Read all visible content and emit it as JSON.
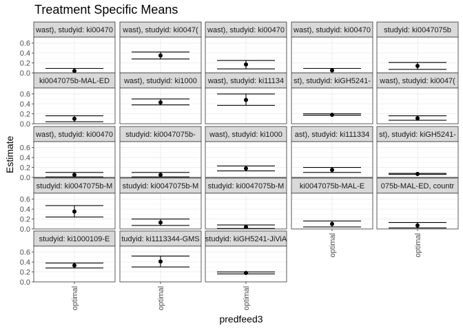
{
  "chart_data": {
    "type": "scatter",
    "title": "Treatment Specific Means",
    "xlabel": "predfeed3",
    "ylabel": "Estimate",
    "category": "optimal",
    "yticks": [
      "0.0",
      "0.2",
      "0.4",
      "0.6"
    ],
    "ylim": [
      0.0,
      0.72
    ],
    "grid": true,
    "panels": [
      {
        "strip": "wast), studyid: ki00470",
        "estimate": 0.04,
        "ci_low": 0.0,
        "ci_high": 0.09
      },
      {
        "strip": "wast), studyid: ki0047(",
        "estimate": 0.35,
        "ci_low": 0.28,
        "ci_high": 0.42
      },
      {
        "strip": "wast), studyid: ki00470",
        "estimate": 0.17,
        "ci_low": 0.08,
        "ci_high": 0.25
      },
      {
        "strip": "wast), studyid: ki00470",
        "estimate": 0.05,
        "ci_low": 0.0,
        "ci_high": 0.09
      },
      {
        "strip": "studyid: ki0047075b",
        "estimate": 0.14,
        "ci_low": 0.07,
        "ci_high": 0.21
      },
      {
        "strip": "ki0047075b-MAL-ED",
        "estimate": 0.1,
        "ci_low": 0.04,
        "ci_high": 0.16
      },
      {
        "strip": "wast), studyid: ki1000",
        "estimate": 0.43,
        "ci_low": 0.38,
        "ci_high": 0.5
      },
      {
        "strip": "wast), studyid: ki11134",
        "estimate": 0.48,
        "ci_low": 0.37,
        "ci_high": 0.6
      },
      {
        "strip": "st), studyid: kiGH5241-",
        "estimate": 0.18,
        "ci_low": 0.17,
        "ci_high": 0.2
      },
      {
        "strip": "wast), studyid: ki0047(",
        "estimate": 0.11,
        "ci_low": 0.07,
        "ci_high": 0.16
      },
      {
        "strip": "wast), studyid: ki00470",
        "estimate": 0.05,
        "ci_low": 0.01,
        "ci_high": 0.1
      },
      {
        "strip": "studyid: ki0047075b-",
        "estimate": 0.05,
        "ci_low": 0.01,
        "ci_high": 0.1
      },
      {
        "strip": "wast), studyid: ki1000",
        "estimate": 0.18,
        "ci_low": 0.13,
        "ci_high": 0.23
      },
      {
        "strip": "ast), studyid: ki111334",
        "estimate": 0.15,
        "ci_low": 0.1,
        "ci_high": 0.2
      },
      {
        "strip": "st), studyid: kiGH5241-",
        "estimate": 0.07,
        "ci_low": 0.06,
        "ci_high": 0.08
      },
      {
        "strip": "studyid: ki0047075b-M",
        "estimate": 0.35,
        "ci_low": 0.24,
        "ci_high": 0.47
      },
      {
        "strip": "studyid: ki0047075b-M",
        "estimate": 0.13,
        "ci_low": 0.07,
        "ci_high": 0.2
      },
      {
        "strip": "studyid: ki0047075b-M",
        "estimate": 0.04,
        "ci_low": 0.01,
        "ci_high": 0.08
      },
      {
        "strip": "ki0047075b-MAL-E",
        "estimate": 0.1,
        "ci_low": 0.04,
        "ci_high": 0.16
      },
      {
        "strip": "075b-MAL-ED, countr",
        "estimate": 0.07,
        "ci_low": 0.02,
        "ci_high": 0.13
      },
      {
        "strip": "studyid: ki1000109-E",
        "estimate": 0.33,
        "ci_low": 0.28,
        "ci_high": 0.38
      },
      {
        "strip": "tudyid: ki1113344-GMS",
        "estimate": 0.41,
        "ci_low": 0.3,
        "ci_high": 0.52
      },
      {
        "strip": "studyid: kiGH5241-JiViA",
        "estimate": 0.18,
        "ci_low": 0.16,
        "ci_high": 0.2
      }
    ]
  }
}
